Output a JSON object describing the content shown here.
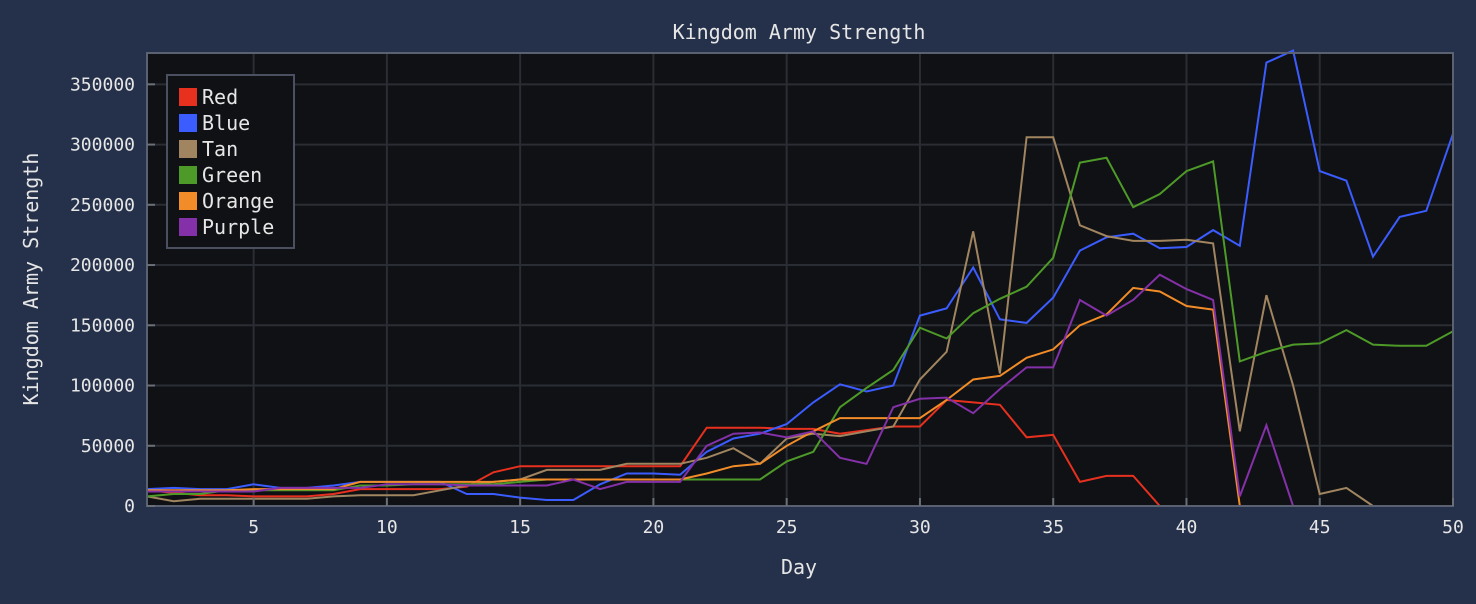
{
  "chart_data": {
    "type": "line",
    "title": "Kingdom Army Strength",
    "xlabel": "Day",
    "ylabel": "Kingdom Army Strength",
    "xlim": [
      1,
      50
    ],
    "ylim": [
      0,
      376000
    ],
    "xticks": [
      5,
      10,
      15,
      20,
      25,
      30,
      35,
      40,
      45,
      50
    ],
    "yticks": [
      0,
      50000,
      100000,
      150000,
      200000,
      250000,
      300000,
      350000
    ],
    "grid": true,
    "legend_position": "top-left",
    "x": [
      1,
      2,
      3,
      4,
      5,
      6,
      7,
      8,
      9,
      10,
      11,
      12,
      13,
      14,
      15,
      16,
      17,
      18,
      19,
      20,
      21,
      22,
      23,
      24,
      25,
      26,
      27,
      28,
      29,
      30,
      31,
      32,
      33,
      34,
      35,
      36,
      37,
      38,
      39,
      40,
      41,
      42,
      43,
      44,
      45,
      46,
      47,
      48,
      49,
      50
    ],
    "series": [
      {
        "name": "Red",
        "color": "#e8301f",
        "values": [
          13000,
          11000,
          9000,
          9000,
          8000,
          8000,
          8000,
          10000,
          14000,
          14000,
          14000,
          14000,
          16000,
          28000,
          33000,
          33000,
          33000,
          33000,
          33000,
          33000,
          33000,
          65000,
          65000,
          65000,
          64000,
          64000,
          60000,
          63000,
          66000,
          66000,
          88000,
          86000,
          84000,
          57000,
          59000,
          20000,
          25000,
          25000,
          0,
          null,
          null,
          null,
          null,
          null,
          null,
          null,
          null,
          null,
          null,
          null
        ]
      },
      {
        "name": "Blue",
        "color": "#3b5cff",
        "values": [
          14000,
          15000,
          14000,
          14000,
          18000,
          15000,
          15000,
          17000,
          20000,
          20000,
          20000,
          20000,
          10000,
          10000,
          7000,
          5000,
          5000,
          18000,
          27000,
          27000,
          26000,
          45000,
          56000,
          60000,
          68000,
          86000,
          101000,
          95000,
          100000,
          158000,
          164000,
          198000,
          155000,
          152000,
          173000,
          212000,
          223000,
          226000,
          214000,
          215000,
          229000,
          216000,
          368000,
          378000,
          278000,
          270000,
          207000,
          240000,
          245000,
          309000
        ]
      },
      {
        "name": "Tan",
        "color": "#a08560",
        "values": [
          8000,
          4000,
          6000,
          6000,
          6000,
          6000,
          6000,
          8000,
          9000,
          9000,
          9000,
          13000,
          17000,
          20000,
          22000,
          30000,
          30000,
          30000,
          35000,
          35000,
          35000,
          40000,
          48000,
          35000,
          56000,
          60000,
          58000,
          62000,
          66000,
          105000,
          128000,
          228000,
          110000,
          306000,
          306000,
          233000,
          224000,
          220000,
          220000,
          221000,
          218000,
          62000,
          175000,
          100000,
          10000,
          15000,
          0,
          null,
          null,
          null
        ]
      },
      {
        "name": "Green",
        "color": "#4e9a28",
        "values": [
          8000,
          10000,
          10000,
          13000,
          13000,
          13000,
          13000,
          13000,
          17000,
          17000,
          18000,
          18000,
          18000,
          18000,
          20000,
          22000,
          22000,
          22000,
          22000,
          22000,
          22000,
          22000,
          22000,
          22000,
          37000,
          45000,
          82000,
          98000,
          113000,
          148000,
          139000,
          160000,
          172000,
          182000,
          206000,
          285000,
          289000,
          248000,
          259000,
          278000,
          286000,
          120000,
          128000,
          134000,
          135000,
          146000,
          134000,
          133000,
          133000,
          145000
        ]
      },
      {
        "name": "Orange",
        "color": "#f28c28",
        "values": [
          13000,
          13000,
          13000,
          13000,
          14000,
          14000,
          14000,
          14000,
          20000,
          20000,
          20000,
          20000,
          20000,
          20000,
          22000,
          22000,
          22000,
          22000,
          22000,
          22000,
          22000,
          27000,
          33000,
          35000,
          50000,
          62000,
          73000,
          73000,
          73000,
          73000,
          88000,
          105000,
          108000,
          123000,
          130000,
          150000,
          159000,
          181000,
          178000,
          166000,
          163000,
          0,
          null,
          null,
          null,
          null,
          null,
          null,
          null,
          null
        ]
      },
      {
        "name": "Purple",
        "color": "#8430a8",
        "values": [
          12000,
          12000,
          12000,
          12000,
          12000,
          15000,
          15000,
          15000,
          15000,
          18000,
          18000,
          18000,
          17000,
          17000,
          17000,
          17000,
          22000,
          14000,
          20000,
          20000,
          20000,
          50000,
          60000,
          61000,
          57000,
          62000,
          40000,
          35000,
          82000,
          89000,
          90000,
          77000,
          97000,
          115000,
          115000,
          171000,
          158000,
          171000,
          192000,
          180000,
          171000,
          8000,
          67000,
          0,
          null,
          null,
          null,
          null,
          null,
          null
        ]
      }
    ]
  }
}
